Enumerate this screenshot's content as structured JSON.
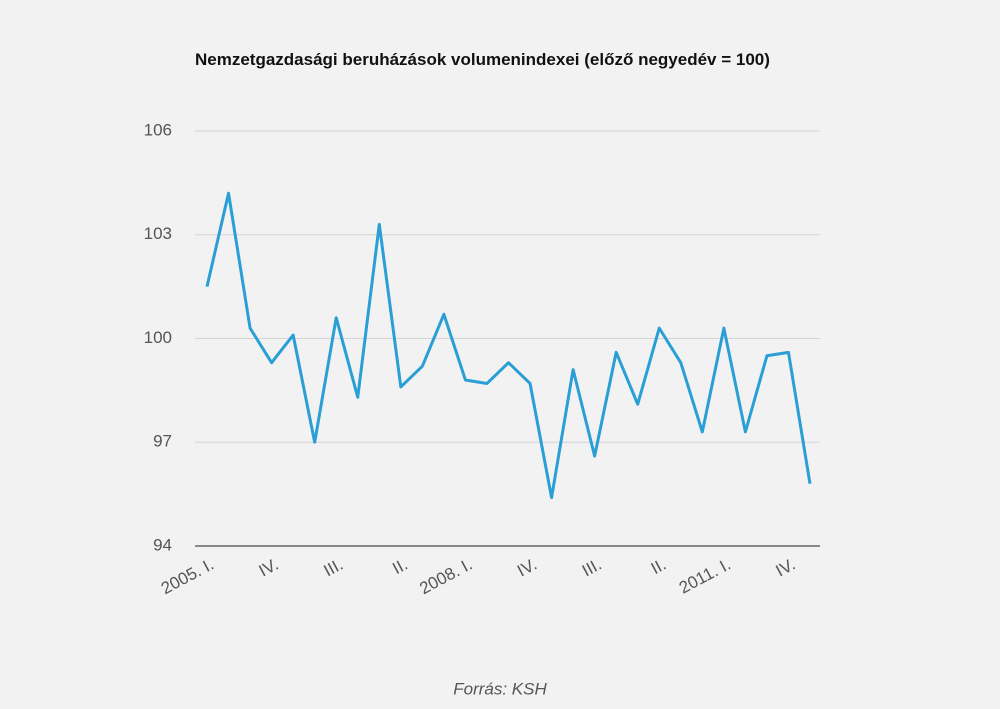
{
  "chart_data": {
    "type": "line",
    "title": "Nemzetgazdasági beruházások volumenindexei (előző negyedév = 100)",
    "source": "Forrás: KSH",
    "categories": [
      "2005. I.",
      null,
      null,
      "IV.",
      null,
      null,
      "III.",
      null,
      null,
      "II.",
      null,
      null,
      "2008. I.",
      null,
      null,
      "IV.",
      null,
      null,
      "III.",
      null,
      null,
      "II.",
      null,
      null,
      "2011. I.",
      null,
      null,
      "IV.",
      null
    ],
    "series": [
      {
        "name": "Volumenindex",
        "color": "#2a9fd6",
        "values": [
          101.5,
          104.2,
          100.3,
          99.3,
          100.1,
          97.0,
          100.6,
          98.3,
          103.3,
          98.6,
          99.2,
          100.7,
          98.8,
          98.7,
          99.3,
          98.7,
          95.4,
          99.1,
          96.6,
          99.6,
          98.1,
          100.3,
          99.3,
          97.3,
          100.3,
          97.3,
          99.5,
          99.6,
          95.8
        ]
      }
    ],
    "ylim": [
      94,
      106
    ],
    "yticks": [
      94,
      97,
      100,
      103,
      106
    ],
    "grid": true,
    "legend": false
  }
}
